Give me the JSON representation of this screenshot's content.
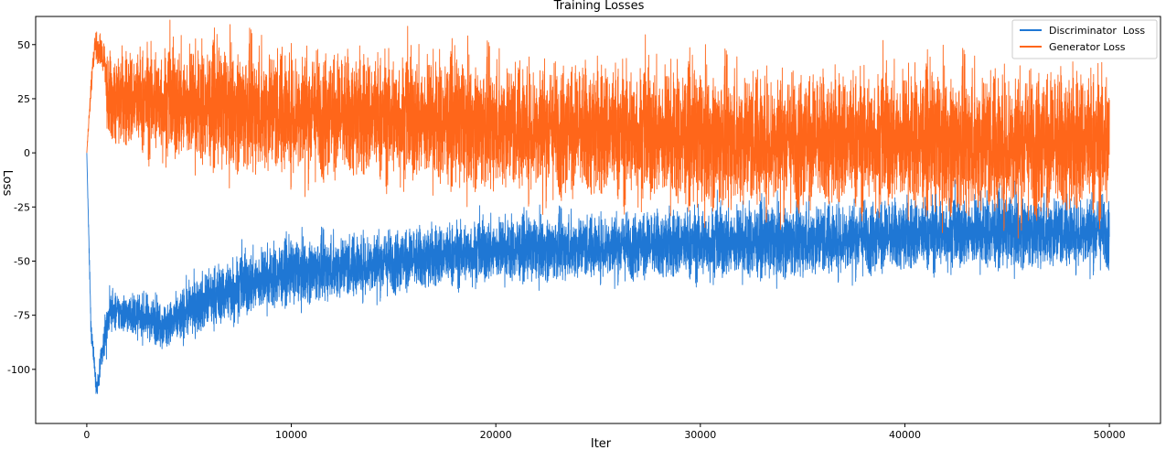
{
  "chart_data": {
    "type": "line",
    "title": "Training Losses",
    "xlabel": "Iter",
    "ylabel": "Loss",
    "xlim": [
      -2500,
      52500
    ],
    "ylim": [
      -125,
      63
    ],
    "x_ticks": [
      0,
      10000,
      20000,
      30000,
      40000,
      50000
    ],
    "y_ticks": [
      50,
      25,
      0,
      -25,
      -50,
      -75,
      -100
    ],
    "grid": false,
    "legend_position": "top-right",
    "series": [
      {
        "name": "Discriminator  Loss",
        "color": "#1f77d4",
        "x": [
          0,
          200,
          500,
          700,
          1000,
          1100,
          3000,
          4000,
          5000,
          7000,
          10000,
          15000,
          20000,
          25000,
          30000,
          35000,
          40000,
          45000,
          50000
        ],
        "center": [
          0,
          -80,
          -110,
          -95,
          -80,
          -73,
          -76,
          -80,
          -72,
          -63,
          -55,
          -50,
          -45,
          -43,
          -42,
          -40,
          -38,
          -36,
          -36
        ],
        "spread": [
          0,
          3,
          2,
          3,
          5,
          4,
          5,
          5,
          6,
          7,
          7,
          7,
          7,
          7,
          8,
          8,
          8,
          8,
          8
        ]
      },
      {
        "name": "Generator Loss",
        "color": "#ff661a",
        "x": [
          0,
          200,
          400,
          600,
          900,
          1000,
          3000,
          5000,
          10000,
          15000,
          20000,
          25000,
          30000,
          35000,
          40000,
          45000,
          50000
        ],
        "center": [
          0,
          30,
          50,
          48,
          40,
          25,
          24,
          22,
          19,
          16,
          13,
          10,
          7,
          6,
          6,
          5,
          5
        ],
        "spread": [
          0,
          3,
          3,
          4,
          5,
          10,
          12,
          13,
          14,
          14,
          14,
          15,
          15,
          15,
          15,
          16,
          16
        ]
      }
    ]
  }
}
